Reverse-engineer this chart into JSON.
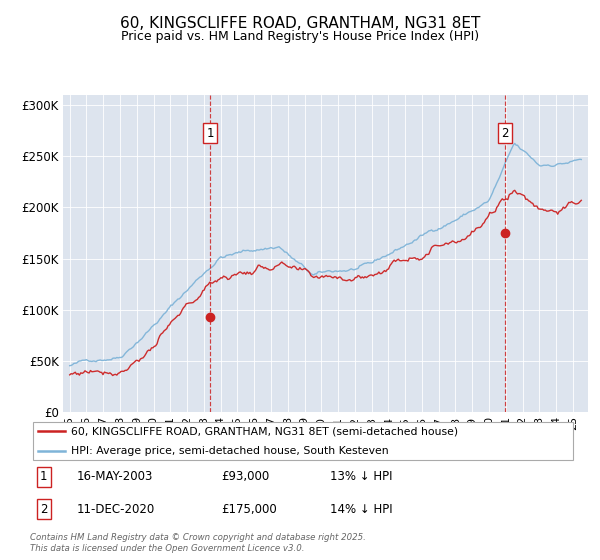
{
  "title": "60, KINGSCLIFFE ROAD, GRANTHAM, NG31 8ET",
  "subtitle": "Price paid vs. HM Land Registry's House Price Index (HPI)",
  "legend_line1": "60, KINGSCLIFFE ROAD, GRANTHAM, NG31 8ET (semi-detached house)",
  "legend_line2": "HPI: Average price, semi-detached house, South Kesteven",
  "annotation1_date": "16-MAY-2003",
  "annotation1_price": "£93,000",
  "annotation1_hpi": "13% ↓ HPI",
  "annotation2_date": "11-DEC-2020",
  "annotation2_price": "£175,000",
  "annotation2_hpi": "14% ↓ HPI",
  "footer": "Contains HM Land Registry data © Crown copyright and database right 2025.\nThis data is licensed under the Open Government Licence v3.0.",
  "hpi_color": "#7fb4d8",
  "price_color": "#cc2222",
  "vline_color": "#cc2222",
  "background_color": "#dde4ee",
  "ylim": [
    0,
    310000
  ],
  "yticks": [
    0,
    50000,
    100000,
    150000,
    200000,
    250000,
    300000
  ],
  "ytick_labels": [
    "£0",
    "£50K",
    "£100K",
    "£150K",
    "£200K",
    "£250K",
    "£300K"
  ],
  "sale1_year": 2003.37,
  "sale1_price": 93000,
  "sale2_year": 2020.94,
  "sale2_price": 175000
}
